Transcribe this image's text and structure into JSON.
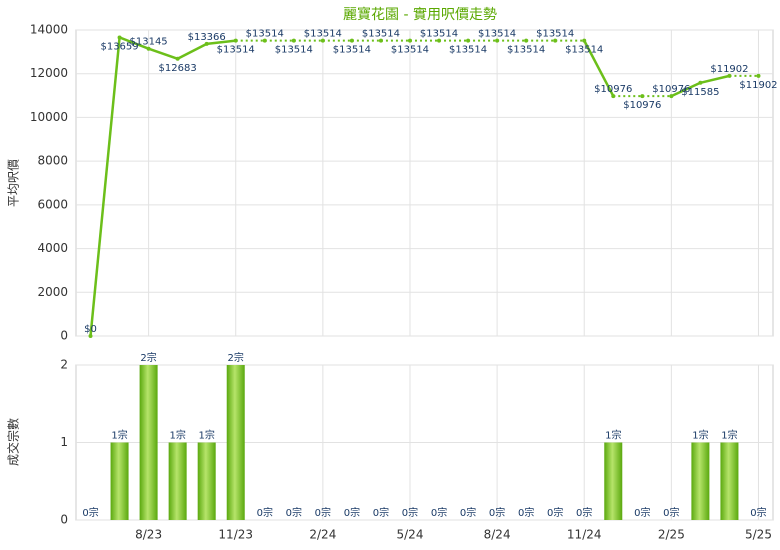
{
  "chart_data": [
    {
      "type": "line",
      "title": "麗寶花園 - 實用呎價走勢",
      "ylabel": "平均呎價",
      "color": "#6cbf1a",
      "values": [
        0,
        13659,
        13145,
        12683,
        13366,
        13514,
        13514,
        13514,
        13514,
        13514,
        13514,
        13514,
        13514,
        13514,
        13514,
        13514,
        13514,
        13514,
        10976,
        10976,
        10976,
        11585,
        11902,
        11902
      ],
      "value_labels": [
        "$0",
        "$13659",
        "$13145",
        "$12683",
        "$13366",
        "$13514",
        "$13514",
        "$13514",
        "$13514",
        "$13514",
        "$13514",
        "$13514",
        "$13514",
        "$13514",
        "$13514",
        "$13514",
        "$13514",
        "$13514",
        "$10976",
        "$10976",
        "$10976",
        "$11585",
        "$11902",
        "$11902"
      ],
      "ylim": [
        0,
        14000
      ],
      "yticks": [
        0,
        2000,
        4000,
        6000,
        8000,
        10000,
        12000,
        14000
      ],
      "grid": true
    },
    {
      "type": "bar",
      "ylabel": "成交宗數",
      "color": "#6cbf1a",
      "categories": [
        null,
        null,
        "8/23",
        null,
        null,
        "11/23",
        null,
        null,
        "2/24",
        null,
        null,
        "5/24",
        null,
        null,
        "8/24",
        null,
        null,
        "11/24",
        null,
        null,
        "2/25",
        null,
        null,
        "5/25"
      ],
      "values": [
        0,
        1,
        2,
        1,
        1,
        2,
        0,
        0,
        0,
        0,
        0,
        0,
        0,
        0,
        0,
        0,
        0,
        0,
        1,
        0,
        0,
        1,
        1,
        0
      ],
      "value_labels": [
        "0宗",
        "1宗",
        "2宗",
        "1宗",
        "1宗",
        "2宗",
        "0宗",
        "0宗",
        "0宗",
        "0宗",
        "0宗",
        "0宗",
        "0宗",
        "0宗",
        "0宗",
        "0宗",
        "0宗",
        "0宗",
        "1宗",
        "0宗",
        "0宗",
        "1宗",
        "1宗",
        "0宗"
      ],
      "ylim": [
        0,
        2
      ],
      "yticks": [
        0,
        1,
        2
      ],
      "grid": true
    }
  ]
}
